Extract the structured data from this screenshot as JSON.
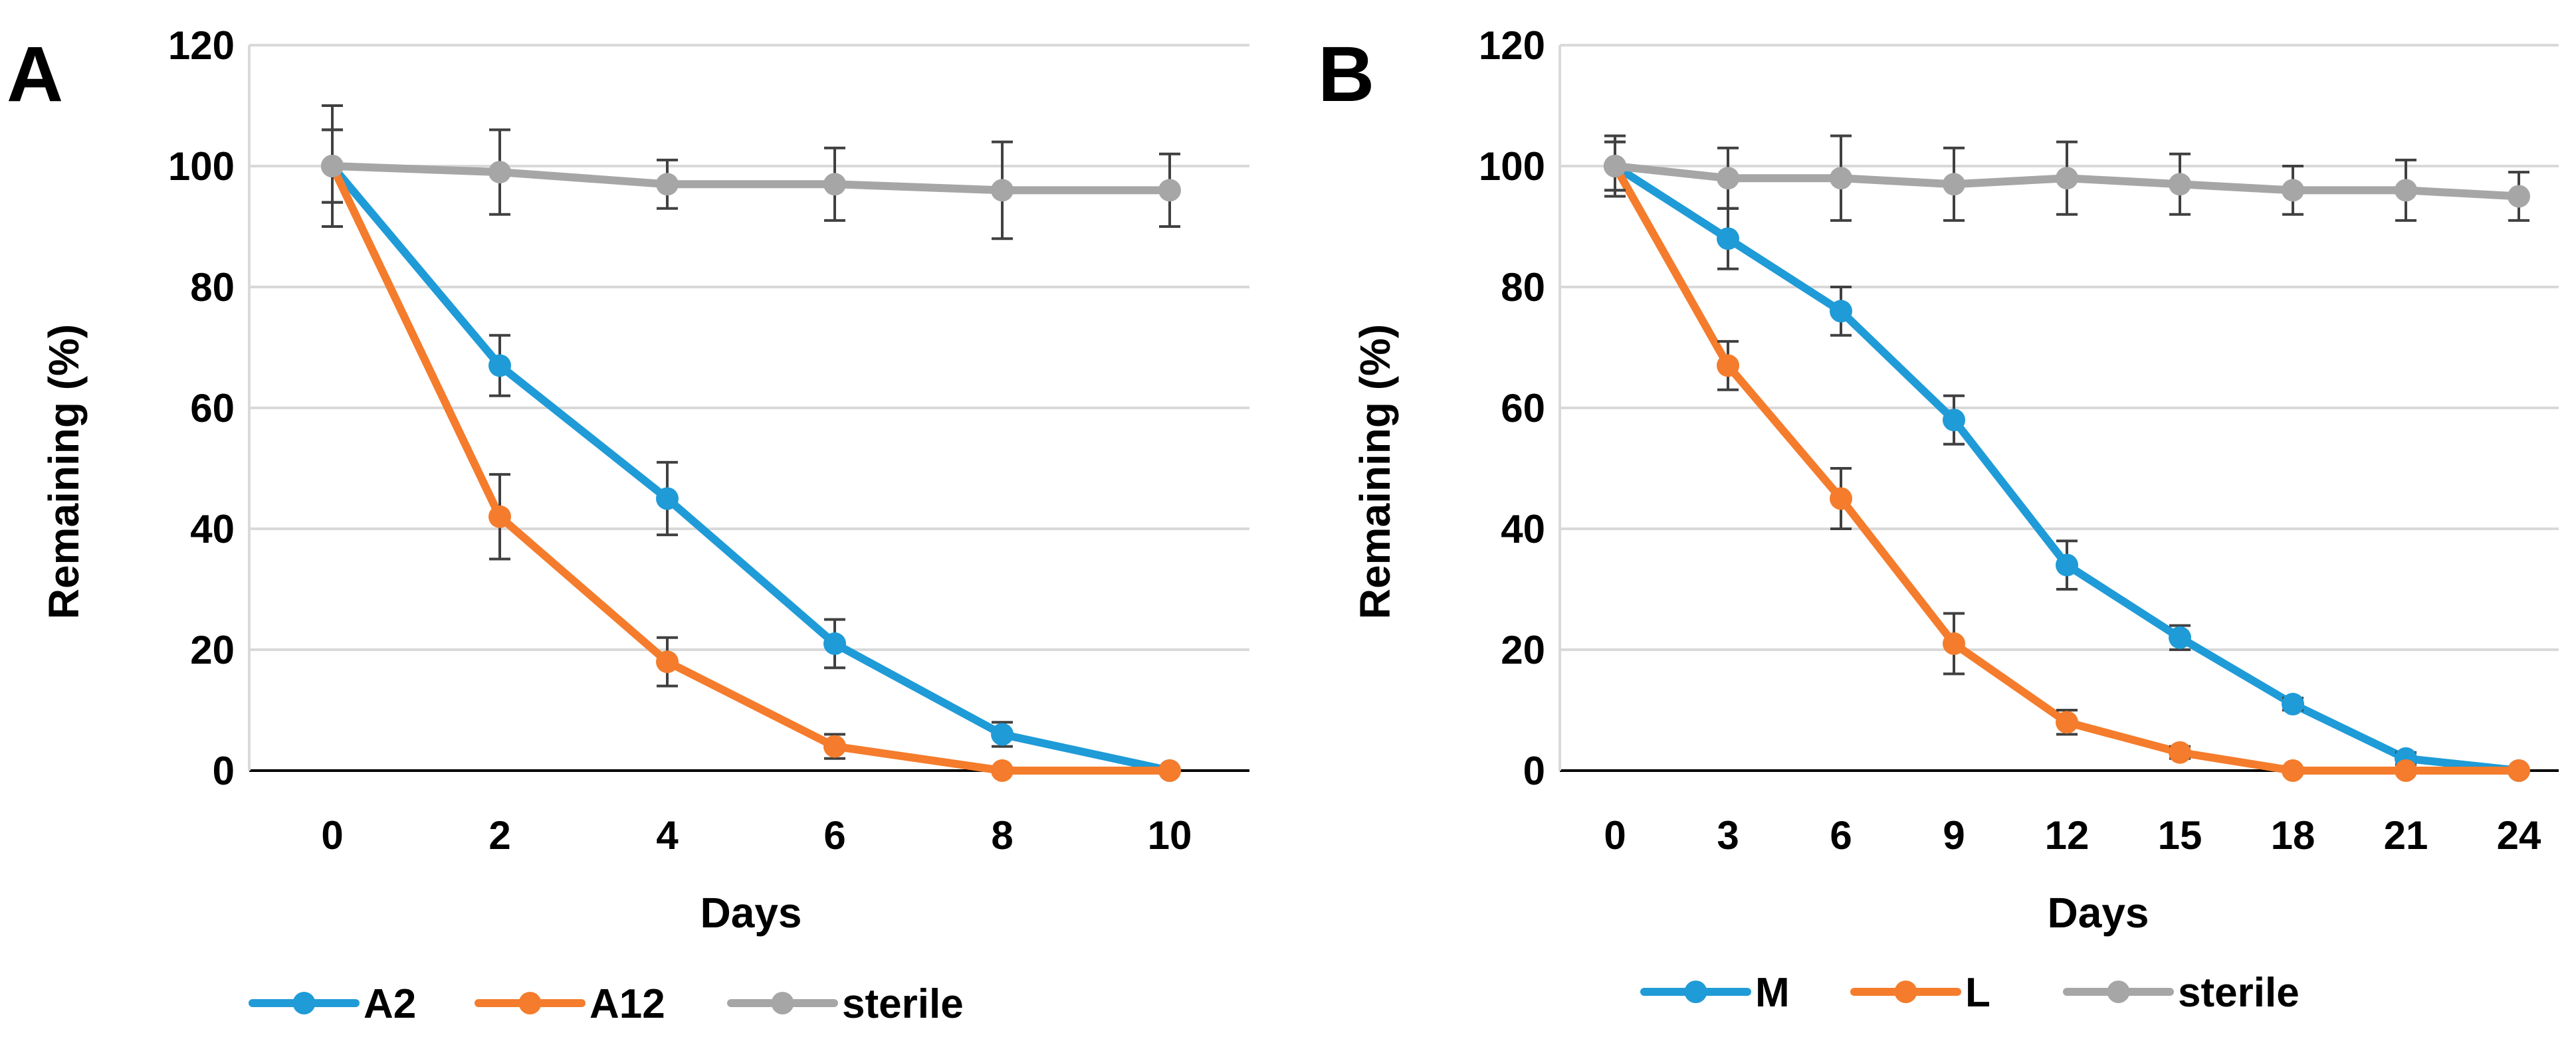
{
  "chart_data": [
    {
      "type": "line",
      "panel_label": "A",
      "xlabel": "Days",
      "ylabel": "Remaining (%)",
      "categories": [
        "0",
        "2",
        "4",
        "6",
        "8",
        "10"
      ],
      "yticks": [
        "0",
        "20",
        "40",
        "60",
        "80",
        "100",
        "120"
      ],
      "ylim": [
        0,
        120
      ],
      "grid": true,
      "legend_position": "bottom",
      "series": [
        {
          "name": "A2",
          "color": "#1F9BD7",
          "values": [
            100,
            67,
            45,
            21,
            6,
            0
          ],
          "error": [
            6,
            5,
            6,
            4,
            2,
            0
          ]
        },
        {
          "name": "A12",
          "color": "#F47C2C",
          "values": [
            100,
            42,
            18,
            4,
            0,
            0
          ],
          "error": [
            6,
            7,
            4,
            2,
            0,
            0
          ]
        },
        {
          "name": "sterile",
          "color": "#A6A6A6",
          "values": [
            100,
            99,
            97,
            97,
            96,
            96
          ],
          "error": [
            10,
            7,
            4,
            6,
            8,
            6
          ]
        }
      ]
    },
    {
      "type": "line",
      "panel_label": "B",
      "xlabel": "Days",
      "ylabel": "Remaining (%)",
      "categories": [
        "0",
        "3",
        "6",
        "9",
        "12",
        "15",
        "18",
        "21",
        "24"
      ],
      "yticks": [
        "0",
        "20",
        "40",
        "60",
        "80",
        "100",
        "120"
      ],
      "ylim": [
        0,
        120
      ],
      "grid": true,
      "legend_position": "bottom",
      "series": [
        {
          "name": "M",
          "color": "#1F9BD7",
          "values": [
            100,
            88,
            76,
            58,
            34,
            22,
            11,
            2,
            0
          ],
          "error": [
            4,
            5,
            4,
            4,
            4,
            2,
            1,
            1,
            0
          ]
        },
        {
          "name": "L",
          "color": "#F47C2C",
          "values": [
            100,
            67,
            45,
            21,
            8,
            3,
            0,
            0,
            0
          ],
          "error": [
            4,
            4,
            5,
            5,
            2,
            1,
            0,
            0,
            0
          ]
        },
        {
          "name": "sterile",
          "color": "#A6A6A6",
          "values": [
            100,
            98,
            98,
            97,
            98,
            97,
            96,
            96,
            95
          ],
          "error": [
            5,
            5,
            7,
            6,
            6,
            5,
            4,
            5,
            4
          ]
        }
      ]
    }
  ]
}
